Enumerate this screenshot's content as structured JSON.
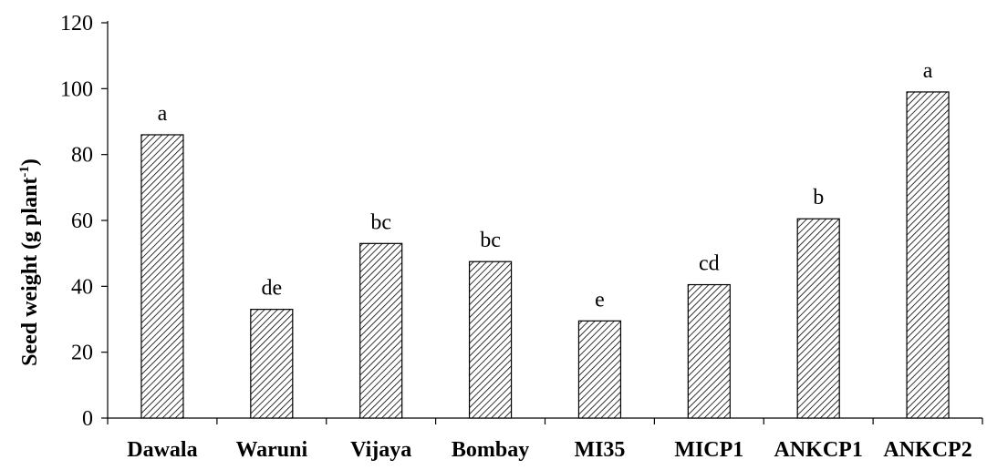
{
  "chart_data": {
    "type": "bar",
    "categories": [
      "Dawala",
      "Waruni",
      "Vijaya",
      "Bombay",
      "MI35",
      "MICP1",
      "ANKCP1",
      "ANKCP2"
    ],
    "values": [
      86,
      33,
      53,
      47.5,
      29.5,
      40.5,
      60.5,
      99
    ],
    "significance_letters": [
      "a",
      "de",
      "bc",
      "bc",
      "e",
      "cd",
      "b",
      "a"
    ],
    "ylabel": "Seed weight  (g plant",
    "ylabel_superscript": "-1",
    "ylabel_suffix": ")",
    "ylim": [
      0,
      120
    ],
    "yticks": [
      "0",
      "20",
      "40",
      "60",
      "80",
      "100",
      "120"
    ],
    "grid": false,
    "bar_fill": "diagonal-hatch",
    "colors": {
      "bar_stroke": "#000000",
      "hatch": "#000000",
      "background": "#ffffff"
    }
  }
}
